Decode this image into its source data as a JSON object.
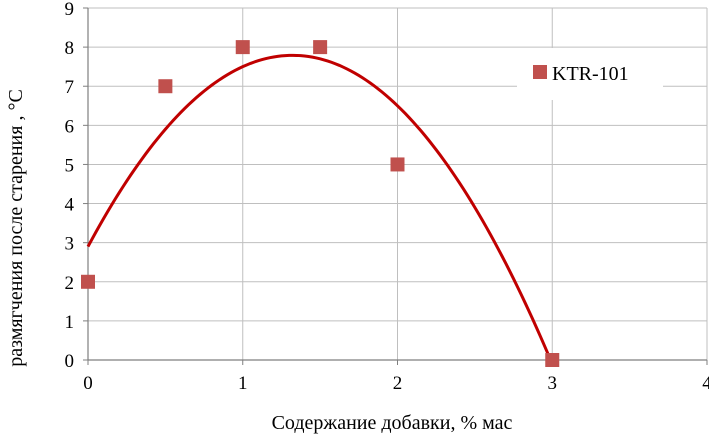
{
  "chart_data": {
    "type": "scatter",
    "title": "",
    "xlabel": "Содержание добавки, % мас",
    "ylabel": "размягчения после старения , °С",
    "xlim": [
      0,
      4
    ],
    "ylim": [
      0,
      9
    ],
    "x_ticks": [
      "0",
      "1",
      "2",
      "3",
      "4"
    ],
    "y_ticks": [
      "0",
      "1",
      "2",
      "3",
      "4",
      "5",
      "6",
      "7",
      "8",
      "9"
    ],
    "grid": true,
    "legend_position": "top-right",
    "series": [
      {
        "name": "KTR-101",
        "marker": "square",
        "color": "#c0504d",
        "points": [
          {
            "x": 0,
            "y": 2
          },
          {
            "x": 0.5,
            "y": 7
          },
          {
            "x": 1,
            "y": 8
          },
          {
            "x": 1.5,
            "y": 8
          },
          {
            "x": 2,
            "y": 5
          },
          {
            "x": 3,
            "y": 0
          }
        ]
      }
    ],
    "trendline": {
      "type": "polynomial",
      "color": "#c00000",
      "coefficients": [
        2.9,
        7.4,
        -2.8
      ],
      "x_range": [
        0,
        3
      ]
    }
  }
}
